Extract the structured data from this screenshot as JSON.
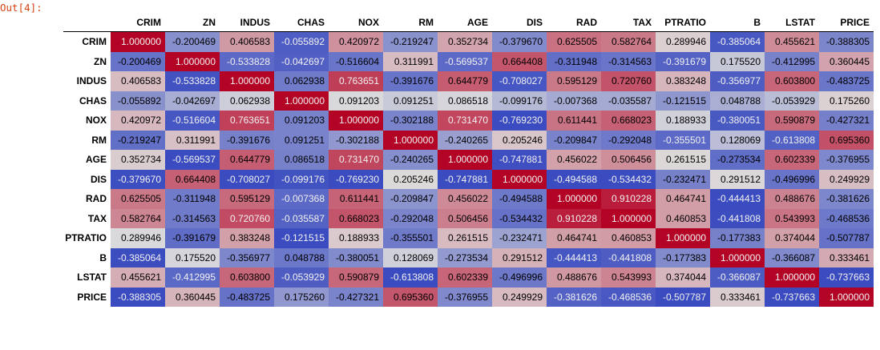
{
  "prompt": "Out[4]:",
  "columns": [
    "CRIM",
    "ZN",
    "INDUS",
    "CHAS",
    "NOX",
    "RM",
    "AGE",
    "DIS",
    "RAD",
    "TAX",
    "PTRATIO",
    "B",
    "LSTAT",
    "PRICE"
  ],
  "rows": [
    {
      "label": "CRIM",
      "values": [
        "1.000000",
        "-0.200469",
        "0.406583",
        "-0.055892",
        "0.420972",
        "-0.219247",
        "0.352734",
        "-0.379670",
        "0.625505",
        "0.582764",
        "0.289946",
        "-0.385064",
        "0.455621",
        "-0.388305"
      ]
    },
    {
      "label": "ZN",
      "values": [
        "-0.200469",
        "1.000000",
        "-0.533828",
        "-0.042697",
        "-0.516604",
        "0.311991",
        "-0.569537",
        "0.664408",
        "-0.311948",
        "-0.314563",
        "-0.391679",
        "0.175520",
        "-0.412995",
        "0.360445"
      ]
    },
    {
      "label": "INDUS",
      "values": [
        "0.406583",
        "-0.533828",
        "1.000000",
        "0.062938",
        "0.763651",
        "-0.391676",
        "0.644779",
        "-0.708027",
        "0.595129",
        "0.720760",
        "0.383248",
        "-0.356977",
        "0.603800",
        "-0.483725"
      ]
    },
    {
      "label": "CHAS",
      "values": [
        "-0.055892",
        "-0.042697",
        "0.062938",
        "1.000000",
        "0.091203",
        "0.091251",
        "0.086518",
        "-0.099176",
        "-0.007368",
        "-0.035587",
        "-0.121515",
        "0.048788",
        "-0.053929",
        "0.175260"
      ]
    },
    {
      "label": "NOX",
      "values": [
        "0.420972",
        "-0.516604",
        "0.763651",
        "0.091203",
        "1.000000",
        "-0.302188",
        "0.731470",
        "-0.769230",
        "0.611441",
        "0.668023",
        "0.188933",
        "-0.380051",
        "0.590879",
        "-0.427321"
      ]
    },
    {
      "label": "RM",
      "values": [
        "-0.219247",
        "0.311991",
        "-0.391676",
        "0.091251",
        "-0.302188",
        "1.000000",
        "-0.240265",
        "0.205246",
        "-0.209847",
        "-0.292048",
        "-0.355501",
        "0.128069",
        "-0.613808",
        "0.695360"
      ]
    },
    {
      "label": "AGE",
      "values": [
        "0.352734",
        "-0.569537",
        "0.644779",
        "0.086518",
        "0.731470",
        "-0.240265",
        "1.000000",
        "-0.747881",
        "0.456022",
        "0.506456",
        "0.261515",
        "-0.273534",
        "0.602339",
        "-0.376955"
      ]
    },
    {
      "label": "DIS",
      "values": [
        "-0.379670",
        "0.664408",
        "-0.708027",
        "-0.099176",
        "-0.769230",
        "0.205246",
        "-0.747881",
        "1.000000",
        "-0.494588",
        "-0.534432",
        "-0.232471",
        "0.291512",
        "-0.496996",
        "0.249929"
      ]
    },
    {
      "label": "RAD",
      "values": [
        "0.625505",
        "-0.311948",
        "0.595129",
        "-0.007368",
        "0.611441",
        "-0.209847",
        "0.456022",
        "-0.494588",
        "1.000000",
        "0.910228",
        "0.464741",
        "-0.444413",
        "0.488676",
        "-0.381626"
      ]
    },
    {
      "label": "TAX",
      "values": [
        "0.582764",
        "-0.314563",
        "0.720760",
        "-0.035587",
        "0.668023",
        "-0.292048",
        "0.506456",
        "-0.534432",
        "0.910228",
        "1.000000",
        "0.460853",
        "-0.441808",
        "0.543993",
        "-0.468536"
      ]
    },
    {
      "label": "PTRATIO",
      "values": [
        "0.289946",
        "-0.391679",
        "0.383248",
        "-0.121515",
        "0.188933",
        "-0.355501",
        "0.261515",
        "-0.232471",
        "0.464741",
        "0.460853",
        "1.000000",
        "-0.177383",
        "0.374044",
        "-0.507787"
      ]
    },
    {
      "label": "B",
      "values": [
        "-0.385064",
        "0.175520",
        "-0.356977",
        "0.048788",
        "-0.380051",
        "0.128069",
        "-0.273534",
        "0.291512",
        "-0.444413",
        "-0.441808",
        "-0.177383",
        "1.000000",
        "-0.366087",
        "0.333461"
      ]
    },
    {
      "label": "LSTAT",
      "values": [
        "0.455621",
        "-0.412995",
        "0.603800",
        "-0.053929",
        "0.590879",
        "-0.613808",
        "0.602339",
        "-0.496996",
        "0.488676",
        "0.543993",
        "0.374044",
        "-0.366087",
        "1.000000",
        "-0.737663"
      ]
    },
    {
      "label": "PRICE",
      "values": [
        "-0.388305",
        "0.360445",
        "-0.483725",
        "0.175260",
        "-0.427321",
        "0.695360",
        "-0.376955",
        "0.249929",
        "-0.381626",
        "-0.468536",
        "-0.507787",
        "0.333461",
        "-0.737663",
        "1.000000"
      ]
    }
  ],
  "colormap": {
    "name": "coolwarm",
    "low": "#3b4cc0",
    "mid": "#dddcdc",
    "high": "#b40426",
    "prompt_color": "#d84315"
  }
}
